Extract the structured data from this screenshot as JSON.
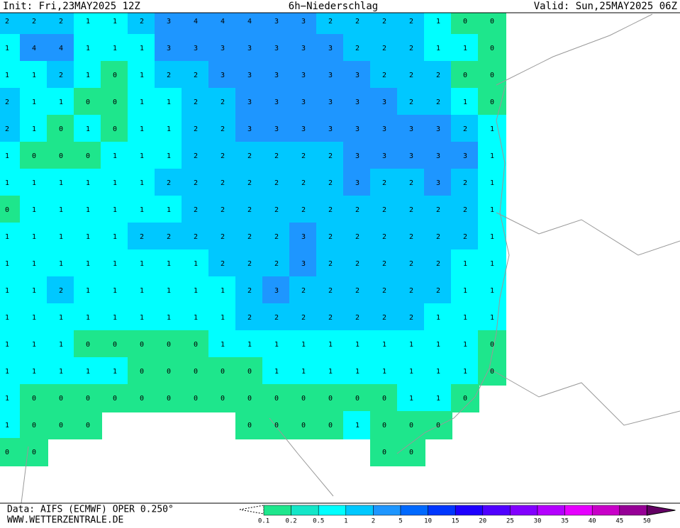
{
  "header": {
    "init": "Init: Fri,23MAY2025 12Z",
    "title": "6h−Niederschlag",
    "valid": "Valid: Sun,25MAY2025 06Z"
  },
  "footer": {
    "source": "Data: AIFS (ECMWF) OPER 0.250°",
    "site": "WWW.WETTERZENTRALE.DE"
  },
  "scale": {
    "bounds": [
      {
        "value": 0.1,
        "label": "0.1"
      },
      {
        "value": 0.2,
        "label": "0.2"
      },
      {
        "value": 0.5,
        "label": "0.5"
      },
      1,
      2,
      5,
      10,
      15,
      20,
      25,
      30,
      35,
      40,
      45,
      50
    ],
    "colors": [
      "#1ee68c",
      "#14e6c8",
      "#00ffff",
      "#00c8ff",
      "#1e96ff",
      "#0069ff",
      "#0037ff",
      "#1e00ff",
      "#5000ff",
      "#8200ff",
      "#b400ff",
      "#e600ff",
      "#c800c8",
      "#960096",
      "#640064"
    ]
  },
  "grid": {
    "rows": [
      [
        2,
        2,
        2,
        1,
        1,
        2,
        3,
        4,
        4,
        4,
        3,
        3,
        2,
        2,
        2,
        2,
        1,
        0,
        0
      ],
      [
        1,
        4,
        4,
        1,
        1,
        1,
        3,
        3,
        3,
        3,
        3,
        3,
        3,
        2,
        2,
        2,
        1,
        1,
        0
      ],
      [
        1,
        1,
        2,
        1,
        0,
        1,
        2,
        2,
        3,
        3,
        3,
        3,
        3,
        3,
        2,
        2,
        2,
        0,
        0
      ],
      [
        2,
        1,
        1,
        0,
        0,
        1,
        1,
        2,
        2,
        3,
        3,
        3,
        3,
        3,
        3,
        2,
        2,
        1,
        0
      ],
      [
        2,
        1,
        0,
        1,
        0,
        1,
        1,
        2,
        2,
        3,
        3,
        3,
        3,
        3,
        3,
        3,
        3,
        2,
        1
      ],
      [
        1,
        0,
        0,
        0,
        1,
        1,
        1,
        2,
        2,
        2,
        2,
        2,
        2,
        3,
        3,
        3,
        3,
        3,
        1
      ],
      [
        1,
        1,
        1,
        1,
        1,
        1,
        2,
        2,
        2,
        2,
        2,
        2,
        2,
        3,
        2,
        2,
        3,
        2,
        1
      ],
      [
        0,
        1,
        1,
        1,
        1,
        1,
        1,
        2,
        2,
        2,
        2,
        2,
        2,
        2,
        2,
        2,
        2,
        2,
        1
      ],
      [
        1,
        1,
        1,
        1,
        1,
        2,
        2,
        2,
        2,
        2,
        2,
        3,
        2,
        2,
        2,
        2,
        2,
        2,
        1
      ],
      [
        1,
        1,
        1,
        1,
        1,
        1,
        1,
        1,
        2,
        2,
        2,
        3,
        2,
        2,
        2,
        2,
        2,
        1,
        1
      ],
      [
        1,
        1,
        2,
        1,
        1,
        1,
        1,
        1,
        1,
        2,
        3,
        2,
        2,
        2,
        2,
        2,
        2,
        1,
        1
      ],
      [
        1,
        1,
        1,
        1,
        1,
        1,
        1,
        1,
        1,
        2,
        2,
        2,
        2,
        2,
        2,
        2,
        1,
        1,
        1
      ],
      [
        1,
        1,
        1,
        0,
        0,
        0,
        0,
        0,
        1,
        1,
        1,
        1,
        1,
        1,
        1,
        1,
        1,
        1,
        0
      ],
      [
        1,
        1,
        1,
        1,
        1,
        0,
        0,
        0,
        0,
        0,
        1,
        1,
        1,
        1,
        1,
        1,
        1,
        1,
        0
      ],
      [
        1,
        0,
        0,
        0,
        0,
        0,
        0,
        0,
        0,
        0,
        0,
        0,
        0,
        0,
        0,
        1,
        1,
        0,
        null
      ],
      [
        1,
        0,
        0,
        0,
        null,
        null,
        null,
        null,
        null,
        0,
        0,
        0,
        0,
        1,
        0,
        0,
        0,
        null,
        null
      ],
      [
        0,
        0,
        null,
        null,
        null,
        null,
        null,
        null,
        null,
        null,
        null,
        null,
        null,
        null,
        0,
        0,
        null,
        null,
        null
      ]
    ]
  }
}
